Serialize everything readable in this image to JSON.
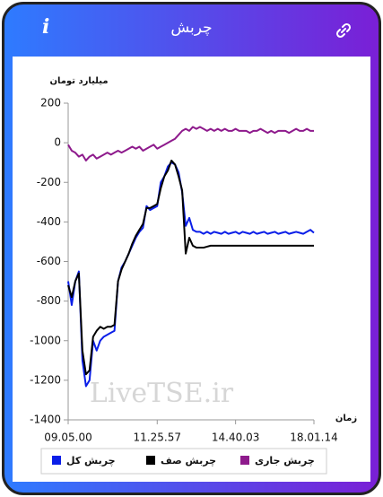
{
  "header": {
    "title": "چربش"
  },
  "chart_data": {
    "type": "line",
    "y_label": "میلیارد تومان",
    "x_label": "زمان",
    "watermark": "LiveTSE.ir",
    "ylim": [
      -1400,
      200
    ],
    "yticks": [
      -1400,
      -1200,
      -1000,
      -800,
      -600,
      -400,
      -200,
      0,
      200
    ],
    "xlim": [
      0,
      69
    ],
    "xticks": [
      {
        "value": 0,
        "label": "09.05.00"
      },
      {
        "value": 25,
        "label": "11.25.57"
      },
      {
        "value": 47,
        "label": "14.40.03"
      },
      {
        "value": 69,
        "label": "18.01.14"
      }
    ],
    "x": [
      0,
      1,
      2,
      3,
      4,
      5,
      6,
      7,
      8,
      9,
      10,
      11,
      12,
      13,
      14,
      15,
      16,
      17,
      18,
      19,
      20,
      21,
      22,
      23,
      24,
      25,
      26,
      27,
      28,
      29,
      30,
      31,
      32,
      33,
      34,
      35,
      36,
      37,
      38,
      39,
      40,
      41,
      42,
      43,
      44,
      45,
      46,
      47,
      48,
      49,
      50,
      51,
      52,
      53,
      54,
      55,
      56,
      57,
      58,
      59,
      60,
      61,
      62,
      63,
      64,
      65,
      66,
      67,
      68,
      69
    ],
    "series": [
      {
        "name": "چربش کل",
        "color": "#0a1ee8",
        "values": [
          -700,
          -820,
          -700,
          -650,
          -1100,
          -1230,
          -1200,
          -1000,
          -1050,
          -1000,
          -980,
          -970,
          -960,
          -950,
          -700,
          -630,
          -600,
          -560,
          -520,
          -480,
          -450,
          -430,
          -320,
          -340,
          -330,
          -320,
          -200,
          -170,
          -120,
          -100,
          -110,
          -150,
          -250,
          -420,
          -380,
          -440,
          -450,
          -450,
          -460,
          -450,
          -460,
          -450,
          -455,
          -460,
          -450,
          -460,
          -455,
          -450,
          -460,
          -450,
          -455,
          -460,
          -450,
          -460,
          -455,
          -450,
          -460,
          -455,
          -450,
          -460,
          -455,
          -450,
          -460,
          -455,
          -450,
          -455,
          -460,
          -450,
          -440,
          -455
        ]
      },
      {
        "name": "چربش صف",
        "color": "#000000",
        "values": [
          -720,
          -780,
          -700,
          -660,
          -1050,
          -1170,
          -1150,
          -980,
          -950,
          -930,
          -940,
          -930,
          -930,
          -920,
          -700,
          -640,
          -600,
          -560,
          -510,
          -470,
          -440,
          -410,
          -330,
          -330,
          -320,
          -310,
          -230,
          -170,
          -140,
          -90,
          -110,
          -170,
          -240,
          -560,
          -480,
          -520,
          -530,
          -530,
          -530,
          -525,
          -520,
          -520,
          -520,
          -520,
          -520,
          -520,
          -520,
          -520,
          -520,
          -520,
          -520,
          -520,
          -520,
          -520,
          -520,
          -520,
          -520,
          -520,
          -520,
          -520,
          -520,
          -520,
          -520,
          -520,
          -520,
          -520,
          -520,
          -520,
          -520,
          -520
        ]
      },
      {
        "name": "چربش جاری",
        "color": "#8e1a8c",
        "values": [
          -10,
          -40,
          -50,
          -70,
          -60,
          -90,
          -70,
          -60,
          -80,
          -70,
          -60,
          -50,
          -60,
          -50,
          -40,
          -50,
          -40,
          -30,
          -20,
          -30,
          -20,
          -40,
          -30,
          -20,
          -10,
          -30,
          -20,
          -10,
          0,
          10,
          20,
          40,
          60,
          70,
          60,
          80,
          70,
          80,
          70,
          60,
          70,
          60,
          70,
          60,
          70,
          60,
          60,
          70,
          60,
          60,
          60,
          50,
          60,
          60,
          70,
          60,
          50,
          60,
          50,
          60,
          60,
          60,
          50,
          60,
          70,
          60,
          60,
          70,
          60,
          60
        ]
      }
    ]
  }
}
